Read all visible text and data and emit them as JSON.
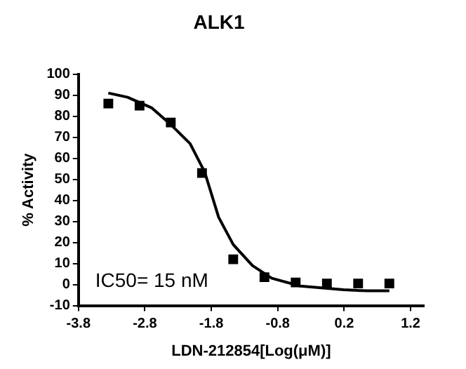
{
  "chart_data": {
    "type": "scatter",
    "title": "ALK1",
    "xlabel": "LDN-212854[Log(μM)]",
    "ylabel": "% Activity",
    "xlim": [
      -3.8,
      1.4
    ],
    "xticks": [
      -3.8,
      -2.8,
      -1.8,
      -0.8,
      0.2,
      1.2
    ],
    "ylim": [
      -10,
      100
    ],
    "yticks": [
      -10,
      0,
      10,
      20,
      30,
      40,
      50,
      60,
      70,
      80,
      90,
      100
    ],
    "grid": false,
    "legend": false,
    "annotations": [
      "IC50= 15 nM"
    ],
    "series": [
      {
        "marker": "square",
        "color": "#000000",
        "x": [
          -3.35,
          -2.88,
          -2.41,
          -1.94,
          -1.47,
          -1.0,
          -0.53,
          -0.06,
          0.41,
          0.88
        ],
        "values": [
          86,
          85,
          77,
          53,
          12,
          3.5,
          1,
          0.5,
          0.5,
          0.5
        ]
      },
      {
        "type": "line",
        "marker": "none",
        "line_style": "solid",
        "color": "#000000",
        "x": [
          -3.35,
          -3.06,
          -2.7,
          -2.41,
          -2.12,
          -1.9,
          -1.69,
          -1.47,
          -1.18,
          -0.89,
          -0.46,
          0.19,
          0.55,
          0.88
        ],
        "values": [
          91,
          89,
          84,
          76,
          67,
          53.5,
          32,
          19,
          9,
          3,
          -0.7,
          -2.5,
          -3,
          -3
        ]
      }
    ]
  }
}
